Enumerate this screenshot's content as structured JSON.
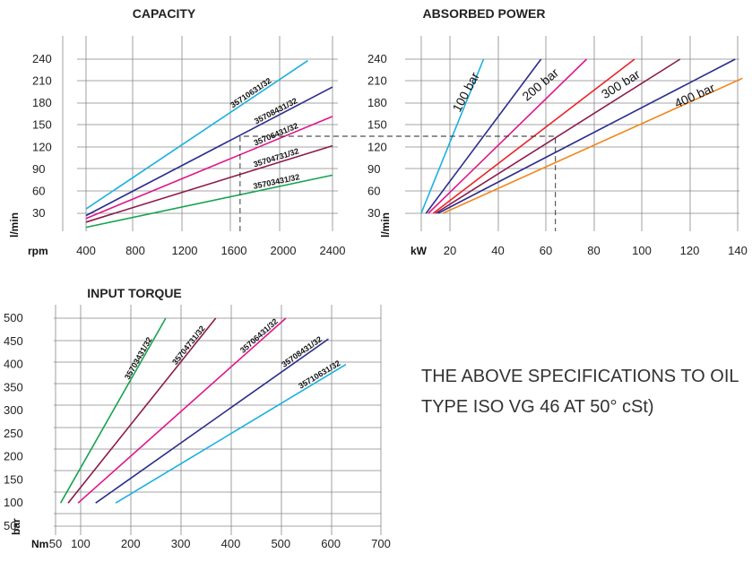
{
  "chart_data": [
    {
      "type": "line",
      "title": "CAPACITY",
      "xlabel": "rpm",
      "ylabel": "l/min",
      "x_ticks": [
        "400",
        "800",
        "1200",
        "1600",
        "2000",
        "2400"
      ],
      "y_ticks": [
        "30",
        "60",
        "90",
        "120",
        "150",
        "180",
        "210",
        "240"
      ],
      "xlim": [
        200,
        2500
      ],
      "ylim": [
        0,
        255
      ],
      "grid": true,
      "series": [
        {
          "name": "35710631/32",
          "color": "#1ab0e0",
          "x": [
            400,
            2200
          ],
          "y": [
            36,
            238
          ]
        },
        {
          "name": "35708431/32",
          "color": "#2b2d8c",
          "x": [
            400,
            2400
          ],
          "y": [
            27,
            202
          ]
        },
        {
          "name": "35706431/32",
          "color": "#e0158a",
          "x": [
            400,
            2400
          ],
          "y": [
            23,
            162
          ]
        },
        {
          "name": "35704731/32",
          "color": "#8c1a4a",
          "x": [
            400,
            2400
          ],
          "y": [
            18,
            122
          ]
        },
        {
          "name": "35703431/32",
          "color": "#16a350",
          "x": [
            400,
            2400
          ],
          "y": [
            11,
            82
          ]
        }
      ],
      "reference": {
        "x": 1650,
        "y": 135
      }
    },
    {
      "type": "line",
      "title": "ABSORBED POWER",
      "xlabel": "kW",
      "ylabel": "l/min",
      "x_ticks": [
        "20",
        "40",
        "60",
        "80",
        "100",
        "120",
        "140"
      ],
      "y_ticks": [
        "30",
        "60",
        "90",
        "120",
        "150",
        "180",
        "210",
        "240"
      ],
      "xlim": [
        3,
        145
      ],
      "ylim": [
        0,
        255
      ],
      "grid": true,
      "pressure_labels": [
        "100 bar",
        "200 bar",
        "300 bar",
        "400 bar"
      ],
      "series": [
        {
          "name": "",
          "color": "#1ab0e0",
          "x": [
            8,
            34
          ],
          "y": [
            30,
            240
          ]
        },
        {
          "name": "",
          "color": "#2b2d8c",
          "x": [
            10,
            58
          ],
          "y": [
            30,
            240
          ]
        },
        {
          "name": "",
          "color": "#e0158a",
          "x": [
            11,
            77
          ],
          "y": [
            30,
            240
          ]
        },
        {
          "name": "",
          "color": "#e8242a",
          "x": [
            13,
            97
          ],
          "y": [
            30,
            240
          ]
        },
        {
          "name": "",
          "color": "#8c1a4a",
          "x": [
            14,
            116
          ],
          "y": [
            30,
            240
          ]
        },
        {
          "name": "",
          "color": "#2b2d8c",
          "x": [
            15,
            139
          ],
          "y": [
            30,
            240
          ]
        },
        {
          "name": "",
          "color": "#f0851c",
          "x": [
            17,
            142
          ],
          "y": [
            30,
            214
          ]
        }
      ],
      "reference": {
        "x": 64,
        "y": 135
      }
    },
    {
      "type": "line",
      "title": "INPUT TORQUE",
      "xlabel": "Nm",
      "ylabel": "bar",
      "x_ticks": [
        "50",
        "100",
        "200",
        "300",
        "400",
        "500",
        "600",
        "700"
      ],
      "y_ticks": [
        "50",
        "100",
        "150",
        "200",
        "250",
        "300",
        "350",
        "400",
        "450",
        "500"
      ],
      "xlim": [
        45,
        720
      ],
      "ylim": [
        20,
        505
      ],
      "grid": true,
      "series": [
        {
          "name": "35703431/32",
          "color": "#16a350",
          "x": [
            60,
            270
          ],
          "y": [
            100,
            500
          ]
        },
        {
          "name": "35704731/32",
          "color": "#8c1a4a",
          "x": [
            75,
            370
          ],
          "y": [
            100,
            500
          ]
        },
        {
          "name": "35706431/32",
          "color": "#e0158a",
          "x": [
            95,
            510
          ],
          "y": [
            100,
            500
          ]
        },
        {
          "name": "35708431/32",
          "color": "#2b2d8c",
          "x": [
            130,
            595
          ],
          "y": [
            100,
            455
          ]
        },
        {
          "name": "35710631/32",
          "color": "#1ab0e0",
          "x": [
            170,
            630
          ],
          "y": [
            100,
            400
          ]
        }
      ]
    }
  ],
  "note": {
    "text": "THE ABOVE SPECIFICATIONS TO OIL TYPE ISO VG 46 AT 50° cSt)"
  }
}
